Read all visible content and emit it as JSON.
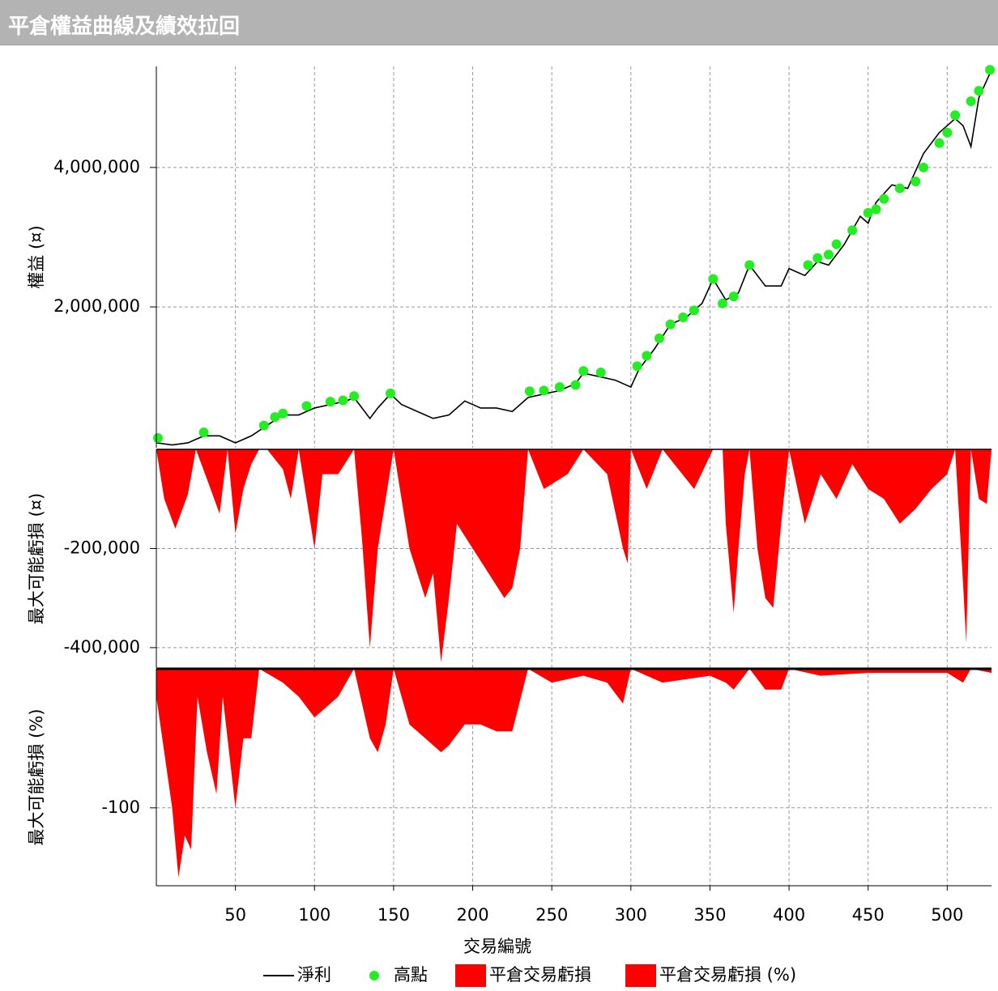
{
  "header": {
    "title": "平倉權益曲線及績效拉回"
  },
  "chart_data": [
    {
      "type": "line",
      "ylabel": "權益 (¤)",
      "ylim": [
        -20000,
        5450000
      ],
      "yticks": [
        {
          "value": 2000000,
          "label": "2,000,000"
        },
        {
          "value": 4000000,
          "label": "4,000,000"
        }
      ],
      "grid": true,
      "series": [
        {
          "name": "淨利",
          "color": "#000000",
          "kind": "line",
          "x": [
            0,
            10,
            20,
            30,
            40,
            50,
            60,
            70,
            80,
            90,
            100,
            110,
            120,
            125,
            130,
            135,
            140,
            148,
            155,
            165,
            175,
            185,
            195,
            205,
            215,
            225,
            235,
            245,
            255,
            265,
            270,
            280,
            290,
            300,
            305,
            315,
            325,
            335,
            345,
            352,
            360,
            368,
            375,
            385,
            395,
            400,
            410,
            418,
            425,
            435,
            445,
            450,
            455,
            465,
            475,
            485,
            495,
            505,
            510,
            515,
            520,
            528
          ],
          "values": [
            50000,
            20000,
            50000,
            150000,
            150000,
            50000,
            150000,
            300000,
            450000,
            450000,
            550000,
            600000,
            650000,
            700000,
            550000,
            400000,
            550000,
            750000,
            600000,
            500000,
            400000,
            450000,
            650000,
            550000,
            550000,
            500000,
            700000,
            750000,
            800000,
            900000,
            1050000,
            1000000,
            950000,
            850000,
            1100000,
            1400000,
            1750000,
            1850000,
            2050000,
            2400000,
            2100000,
            2200000,
            2600000,
            2300000,
            2300000,
            2550000,
            2450000,
            2650000,
            2600000,
            2900000,
            3300000,
            3200000,
            3500000,
            3750000,
            3700000,
            4200000,
            4500000,
            4700000,
            4600000,
            4300000,
            5000000,
            5400000
          ]
        },
        {
          "name": "高點",
          "color": "#22ee22",
          "kind": "scatter",
          "x": [
            1,
            30,
            68,
            75,
            80,
            95,
            110,
            118,
            125,
            148,
            236,
            245,
            255,
            265,
            270,
            281,
            304,
            310,
            318,
            325,
            333,
            340,
            352,
            358,
            365,
            375,
            412,
            418,
            425,
            430,
            440,
            450,
            455,
            460,
            470,
            480,
            485,
            495,
            500,
            505,
            515,
            520,
            527
          ],
          "values": [
            120000,
            200000,
            300000,
            420000,
            470000,
            580000,
            640000,
            660000,
            720000,
            760000,
            790000,
            800000,
            850000,
            880000,
            1080000,
            1060000,
            1150000,
            1300000,
            1550000,
            1750000,
            1850000,
            1950000,
            2400000,
            2050000,
            2150000,
            2600000,
            2600000,
            2700000,
            2750000,
            2900000,
            3100000,
            3350000,
            3400000,
            3550000,
            3700000,
            3800000,
            4000000,
            4350000,
            4500000,
            4750000,
            4950000,
            5100000,
            5400000
          ]
        }
      ]
    },
    {
      "type": "area",
      "ylabel": "最大可能虧損 (¤)",
      "ylim": [
        -441000,
        0
      ],
      "yticks": [
        {
          "value": -400000,
          "label": "-400,000"
        },
        {
          "value": -200000,
          "label": "-200,000"
        }
      ],
      "grid": true,
      "series": [
        {
          "name": "平倉交易虧損",
          "color": "#ff0000",
          "x": [
            0,
            5,
            12,
            20,
            25,
            32,
            40,
            45,
            50,
            55,
            60,
            65,
            70,
            80,
            85,
            90,
            100,
            105,
            115,
            125,
            130,
            135,
            140,
            145,
            150,
            160,
            170,
            175,
            180,
            185,
            190,
            200,
            210,
            220,
            225,
            230,
            235,
            245,
            260,
            270,
            285,
            295,
            298,
            300,
            310,
            320,
            340,
            352,
            358,
            360,
            365,
            368,
            372,
            375,
            380,
            385,
            390,
            395,
            400,
            410,
            420,
            430,
            440,
            450,
            460,
            470,
            480,
            490,
            500,
            505,
            510,
            512,
            515,
            520,
            525,
            528
          ],
          "values": [
            0,
            -100000,
            -160000,
            -90000,
            0,
            -60000,
            -130000,
            0,
            -170000,
            -80000,
            -30000,
            0,
            0,
            -40000,
            -100000,
            0,
            -200000,
            -50000,
            -50000,
            0,
            -180000,
            -400000,
            -200000,
            -100000,
            0,
            -200000,
            -300000,
            -250000,
            -430000,
            -300000,
            -150000,
            -200000,
            -250000,
            -300000,
            -280000,
            -200000,
            0,
            -80000,
            -50000,
            0,
            -50000,
            -200000,
            -230000,
            0,
            -80000,
            0,
            -80000,
            0,
            0,
            -150000,
            -330000,
            -200000,
            -50000,
            0,
            -200000,
            -300000,
            -320000,
            -150000,
            0,
            -150000,
            -50000,
            -100000,
            -30000,
            -80000,
            -100000,
            -150000,
            -120000,
            -80000,
            -50000,
            0,
            -270000,
            -390000,
            0,
            -100000,
            -110000,
            0
          ]
        }
      ]
    },
    {
      "type": "area",
      "ylabel": "最大可能虧損 (%)",
      "ylim": [
        -156,
        0
      ],
      "yticks": [
        -100
      ],
      "grid": true,
      "xlabel": "交易編號",
      "xlim": [
        0,
        528
      ],
      "xticks": [
        50,
        100,
        150,
        200,
        250,
        300,
        350,
        400,
        450,
        500
      ],
      "series": [
        {
          "name": "平倉交易虧損 (%)",
          "color": "#ff0000",
          "x": [
            0,
            5,
            10,
            14,
            18,
            22,
            26,
            32,
            38,
            42,
            50,
            55,
            60,
            65,
            80,
            90,
            100,
            115,
            125,
            135,
            140,
            145,
            150,
            160,
            170,
            180,
            185,
            195,
            205,
            215,
            225,
            235,
            250,
            270,
            285,
            295,
            300,
            320,
            350,
            360,
            365,
            375,
            385,
            395,
            400,
            420,
            450,
            500,
            510,
            515,
            528
          ],
          "values": [
            -20,
            -60,
            -100,
            -150,
            -120,
            -130,
            -20,
            -60,
            -90,
            -20,
            -100,
            -50,
            -50,
            0,
            -10,
            -20,
            -35,
            -20,
            0,
            -50,
            -60,
            -40,
            0,
            -40,
            -50,
            -60,
            -55,
            -40,
            -40,
            -45,
            -45,
            0,
            -10,
            -5,
            -10,
            -25,
            0,
            -10,
            -5,
            -10,
            -15,
            0,
            -15,
            -15,
            0,
            -5,
            -3,
            -3,
            -10,
            0,
            -3
          ]
        }
      ]
    }
  ]
}
